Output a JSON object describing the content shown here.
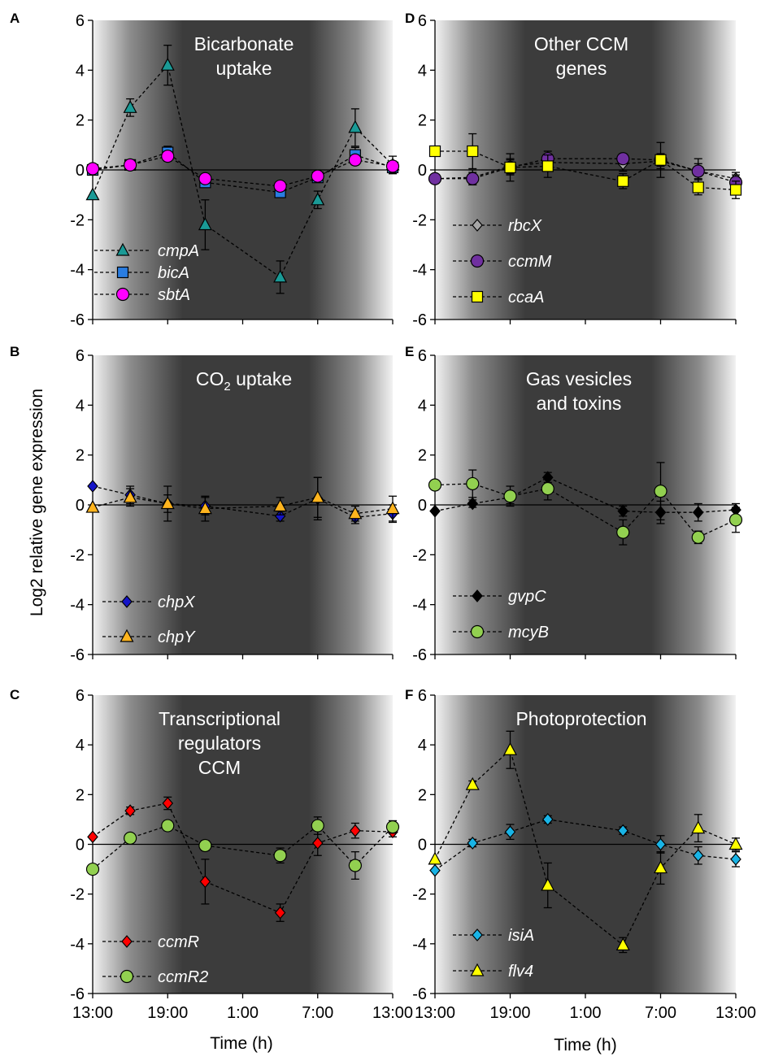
{
  "figure": {
    "ylabel": "Log2 relative gene expression",
    "xlabel": "Time (h)",
    "x_tick_labels": [
      "13:00",
      "19:00",
      "1:00",
      "7:00",
      "13:00"
    ],
    "y_tick_labels": [
      "-6",
      "-4",
      "-2",
      "0",
      "2",
      "4",
      "6"
    ]
  },
  "chart_data": [
    {
      "type": "line",
      "panel": "A",
      "title": [
        "Bicarbonate",
        "uptake"
      ],
      "x": [
        0,
        3,
        6,
        9,
        15,
        18,
        21,
        24
      ],
      "xlim": [
        0,
        24
      ],
      "ylim": [
        -6,
        6
      ],
      "x_ticks": [
        0,
        6,
        12,
        18,
        24
      ],
      "series": [
        {
          "name": "cmpA",
          "marker": "triangle",
          "color": "#1a9a96",
          "values": [
            -1.0,
            2.5,
            4.2,
            -2.2,
            -4.3,
            -1.2,
            1.7,
            0.2
          ],
          "errors": [
            0.1,
            0.35,
            0.8,
            1.0,
            0.65,
            0.35,
            0.75,
            0.35
          ]
        },
        {
          "name": "bicA",
          "marker": "square",
          "color": "#2a7de1",
          "values": [
            0.0,
            0.2,
            0.7,
            -0.5,
            -0.9,
            -0.3,
            0.6,
            0.1
          ],
          "errors": [
            0.1,
            0.15,
            0.25,
            0.2,
            0.15,
            0.15,
            0.3,
            0.25
          ]
        },
        {
          "name": "sbtA",
          "marker": "circle",
          "color": "#ff00ff",
          "values": [
            0.05,
            0.2,
            0.55,
            -0.35,
            -0.65,
            -0.25,
            0.4,
            0.15
          ],
          "errors": [
            0.1,
            0.15,
            0.2,
            0.15,
            0.15,
            0.15,
            0.2,
            0.2
          ]
        }
      ]
    },
    {
      "type": "line",
      "panel": "B",
      "title": [
        "CO2 uptake"
      ],
      "x": [
        0,
        3,
        6,
        9,
        15,
        18,
        21,
        24
      ],
      "xlim": [
        0,
        24
      ],
      "ylim": [
        -6,
        6
      ],
      "x_ticks": [
        0,
        6,
        12,
        18,
        24
      ],
      "series": [
        {
          "name": "chpX",
          "marker": "diamond",
          "color": "#1414c8",
          "values": [
            0.75,
            0.4,
            0.05,
            -0.05,
            -0.45,
            0.25,
            -0.5,
            -0.35
          ],
          "errors": [
            0.1,
            0.35,
            0.35,
            0.35,
            0.2,
            0.85,
            0.25,
            0.35
          ]
        },
        {
          "name": "chpY",
          "marker": "triangle",
          "color": "#ffb41e",
          "values": [
            -0.1,
            0.3,
            0.05,
            -0.15,
            -0.05,
            0.3,
            -0.35,
            -0.15
          ],
          "errors": [
            0.1,
            0.35,
            0.7,
            0.5,
            0.35,
            0.8,
            0.3,
            0.5
          ]
        }
      ]
    },
    {
      "type": "line",
      "panel": "C",
      "title": [
        "Transcriptional",
        "regulators",
        "CCM"
      ],
      "x": [
        0,
        3,
        6,
        9,
        15,
        18,
        21,
        24
      ],
      "xlim": [
        0,
        24
      ],
      "ylim": [
        -6,
        6
      ],
      "x_ticks": [
        0,
        6,
        12,
        18,
        24
      ],
      "series": [
        {
          "name": "ccmR",
          "marker": "diamond",
          "color": "#ff0000",
          "values": [
            0.3,
            1.35,
            1.65,
            -1.5,
            -2.75,
            0.05,
            0.55,
            0.5
          ],
          "errors": [
            0.1,
            0.15,
            0.25,
            0.9,
            0.35,
            0.5,
            0.3,
            0.2
          ]
        },
        {
          "name": "ccmR2",
          "marker": "circle",
          "color": "#92d050",
          "values": [
            -1.0,
            0.25,
            0.75,
            -0.05,
            -0.45,
            0.75,
            -0.85,
            0.7
          ],
          "errors": [
            0.1,
            0.15,
            0.2,
            0.2,
            0.3,
            0.35,
            0.55,
            0.25
          ]
        }
      ]
    },
    {
      "type": "line",
      "panel": "D",
      "title": [
        "Other CCM",
        "genes"
      ],
      "x": [
        0,
        3,
        6,
        9,
        15,
        18,
        21,
        24
      ],
      "xlim": [
        0,
        24
      ],
      "ylim": [
        -6,
        6
      ],
      "x_ticks": [
        0,
        6,
        12,
        18,
        24
      ],
      "series": [
        {
          "name": "rbcX",
          "marker": "diamond",
          "color": "#a6a6a6",
          "values": [
            -0.35,
            -0.3,
            0.15,
            0.3,
            0.25,
            0.35,
            -0.05,
            -0.35
          ],
          "errors": [
            0.1,
            0.3,
            0.3,
            0.3,
            0.3,
            0.3,
            0.3,
            0.25
          ]
        },
        {
          "name": "ccmM",
          "marker": "circle",
          "color": "#7030a0",
          "values": [
            -0.35,
            -0.35,
            0.1,
            0.45,
            0.45,
            0.4,
            -0.05,
            -0.5
          ],
          "errors": [
            0.1,
            0.25,
            0.3,
            0.3,
            0.2,
            0.25,
            0.5,
            0.3
          ]
        },
        {
          "name": "ccaA",
          "marker": "square",
          "color": "#ffff00",
          "values": [
            0.75,
            0.75,
            0.1,
            0.15,
            -0.45,
            0.4,
            -0.7,
            -0.8
          ],
          "errors": [
            0.1,
            0.7,
            0.55,
            0.45,
            0.3,
            0.7,
            0.3,
            0.35
          ]
        }
      ]
    },
    {
      "type": "line",
      "panel": "E",
      "title": [
        "Gas vesicles",
        "and toxins"
      ],
      "x": [
        0,
        3,
        6,
        9,
        15,
        18,
        21,
        24
      ],
      "xlim": [
        0,
        24
      ],
      "ylim": [
        -6,
        6
      ],
      "x_ticks": [
        0,
        6,
        12,
        18,
        24
      ],
      "series": [
        {
          "name": "gvpC",
          "marker": "diamond",
          "color": "#000000",
          "values": [
            -0.25,
            0.05,
            0.3,
            1.1,
            -0.25,
            -0.3,
            -0.3,
            -0.2
          ],
          "errors": [
            0.1,
            0.15,
            0.25,
            0.2,
            0.2,
            0.45,
            0.35,
            0.25
          ]
        },
        {
          "name": "mcyB",
          "marker": "circle",
          "color": "#92d050",
          "values": [
            0.8,
            0.85,
            0.35,
            0.65,
            -1.1,
            0.55,
            -1.3,
            -0.6
          ],
          "errors": [
            0.1,
            0.55,
            0.4,
            0.45,
            0.5,
            1.15,
            0.25,
            0.5
          ]
        }
      ]
    },
    {
      "type": "line",
      "panel": "F",
      "title": [
        "Photoprotection"
      ],
      "x": [
        0,
        3,
        6,
        9,
        15,
        18,
        21,
        24
      ],
      "xlim": [
        0,
        24
      ],
      "ylim": [
        -6,
        6
      ],
      "x_ticks": [
        0,
        6,
        12,
        18,
        24
      ],
      "series": [
        {
          "name": "isiA",
          "marker": "diamond",
          "color": "#19b4e6",
          "values": [
            -1.05,
            0.05,
            0.5,
            1.0,
            0.55,
            0.0,
            -0.45,
            -0.6
          ],
          "errors": [
            0.1,
            0.15,
            0.3,
            0.15,
            0.15,
            0.35,
            0.35,
            0.3
          ]
        },
        {
          "name": "flv4",
          "marker": "triangle",
          "color": "#ffff00",
          "values": [
            -0.6,
            2.4,
            3.8,
            -1.65,
            -4.05,
            -0.95,
            0.65,
            0.0
          ],
          "errors": [
            0.1,
            0.15,
            0.75,
            0.9,
            0.3,
            0.65,
            0.55,
            0.25
          ]
        }
      ]
    }
  ]
}
